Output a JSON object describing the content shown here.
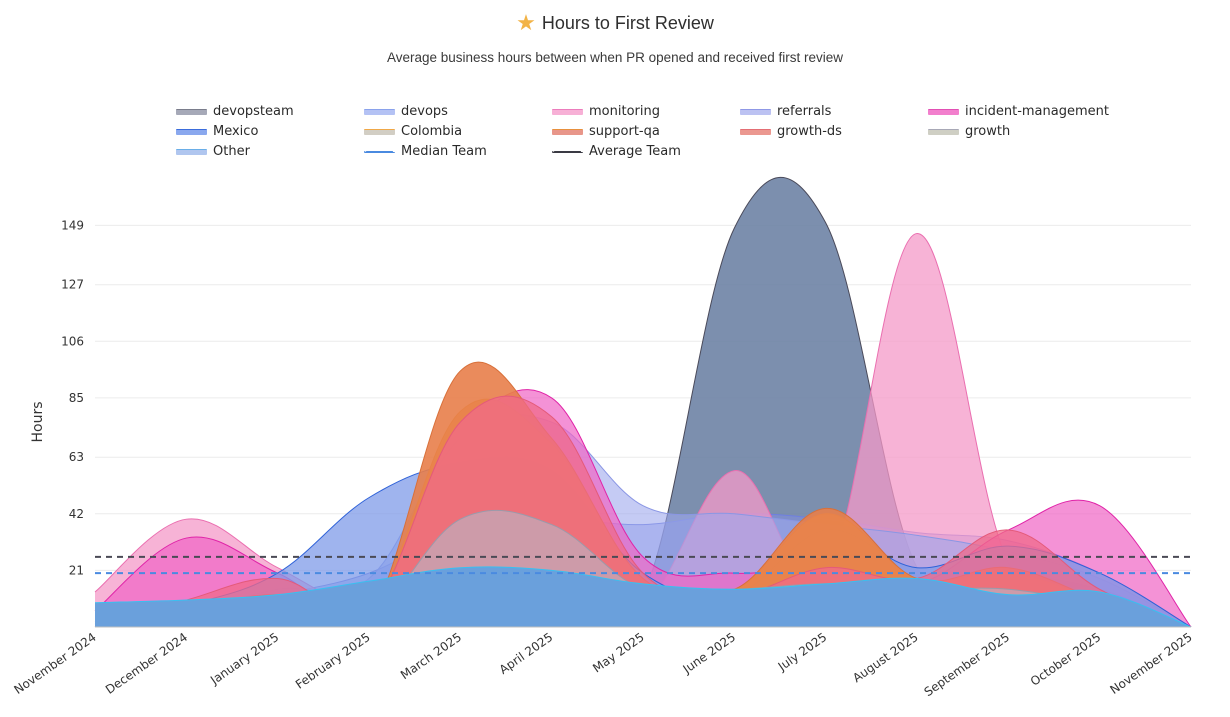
{
  "header": {
    "icon": "star-icon",
    "title": "Hours to First Review",
    "subtitle": "Average business hours between when PR opened and received first review"
  },
  "chart_data": {
    "type": "area",
    "title": "Hours to First Review",
    "subtitle": "Average business hours between when PR opened and received first review",
    "xlabel": "",
    "ylabel": "Hours",
    "ylim": [
      0,
      152
    ],
    "yticks": [
      21,
      42,
      63,
      85,
      106,
      127,
      149
    ],
    "grid": true,
    "legend_position": "top",
    "x": [
      "November 2024",
      "December 2024",
      "January 2025",
      "February 2025",
      "March 2025",
      "April 2025",
      "May 2025",
      "June 2025",
      "July 2025",
      "August 2025",
      "September 2025",
      "October 2025",
      "November 2025"
    ],
    "series": [
      {
        "name": "devopsteam",
        "color": "#6a7fa3",
        "line": "#4a4a5a",
        "opacity": 0.88,
        "values": [
          2,
          6,
          10,
          6,
          8,
          10,
          12,
          148,
          150,
          22,
          20,
          14,
          0
        ]
      },
      {
        "name": "devops",
        "color": "#7f8ee6",
        "line": "#6f7fe0",
        "opacity": 0.5,
        "values": [
          3,
          6,
          12,
          20,
          36,
          40,
          38,
          42,
          40,
          35,
          32,
          20,
          0
        ]
      },
      {
        "name": "monitoring",
        "color": "#f49ac8",
        "line": "#ea6fb0",
        "opacity": 0.75,
        "values": [
          13,
          40,
          22,
          6,
          10,
          14,
          8,
          58,
          20,
          146,
          24,
          14,
          0
        ]
      },
      {
        "name": "referrals",
        "color": "#9fa8ec",
        "line": "#8a96e4",
        "opacity": 0.6,
        "values": [
          4,
          6,
          14,
          18,
          70,
          76,
          45,
          42,
          38,
          34,
          28,
          18,
          0
        ]
      },
      {
        "name": "incident-management",
        "color": "#f064c4",
        "line": "#e024a8",
        "opacity": 0.7,
        "values": [
          6,
          33,
          20,
          4,
          70,
          85,
          26,
          20,
          22,
          16,
          36,
          45,
          0
        ]
      },
      {
        "name": "Mexico",
        "color": "#7f9be8",
        "line": "#2f62d8",
        "opacity": 0.75,
        "values": [
          1,
          8,
          20,
          48,
          61,
          58,
          20,
          12,
          36,
          22,
          30,
          20,
          0
        ]
      },
      {
        "name": "Colombia",
        "color": "#f2b04a",
        "line": "#e8a030",
        "opacity": 0.9,
        "values": [
          0,
          4,
          10,
          5,
          80,
          68,
          18,
          14,
          42,
          18,
          20,
          10,
          0
        ]
      },
      {
        "name": "support-qa",
        "color": "#e87e4a",
        "line": "#d8703a",
        "opacity": 0.9,
        "values": [
          0,
          6,
          12,
          4,
          95,
          70,
          18,
          14,
          44,
          18,
          22,
          10,
          0
        ]
      },
      {
        "name": "growth-ds",
        "color": "#f06a8a",
        "line": "#e45a7a",
        "opacity": 0.75,
        "values": [
          0,
          10,
          18,
          6,
          76,
          78,
          20,
          12,
          22,
          18,
          36,
          14,
          0
        ]
      },
      {
        "name": "growth",
        "color": "#b8b8c8",
        "line": "#9a9aaa",
        "opacity": 0.6,
        "values": [
          0,
          6,
          8,
          4,
          40,
          38,
          14,
          14,
          16,
          14,
          14,
          8,
          0
        ]
      },
      {
        "name": "Other",
        "color": "#6aa0dc",
        "line": "#38c0f0",
        "opacity": 1.0,
        "values": [
          9,
          10,
          12,
          17,
          22,
          21,
          16,
          14,
          16,
          18,
          12,
          13,
          0
        ]
      }
    ],
    "reference_lines": [
      {
        "name": "Median Team",
        "value": 20,
        "color": "#4a8ae0",
        "style": "dashed"
      },
      {
        "name": "Average Team",
        "value": 26,
        "color": "#4a4a55",
        "style": "dashed"
      }
    ]
  },
  "legend": [
    {
      "label": "devopsteam",
      "swatch": "#a6a9b8",
      "edge": "#7a7d8c"
    },
    {
      "label": "devops",
      "swatch": "#b4c2f4",
      "edge": "#8aa2ec"
    },
    {
      "label": "monitoring",
      "swatch": "#f7b0d6",
      "edge": "#ec7cbc"
    },
    {
      "label": "referrals",
      "swatch": "#bcc2f2",
      "edge": "#8f98e6"
    },
    {
      "label": "incident-management",
      "swatch": "#f27fcd",
      "edge": "#e24fb4"
    },
    {
      "label": "Mexico",
      "swatch": "#8aa8ee",
      "edge": "#3b6ddc"
    },
    {
      "label": "Colombia",
      "swatch": "#d2cec4",
      "edge": "#f0a848"
    },
    {
      "label": "support-qa",
      "swatch": "#e8968a",
      "edge": "#e8903e"
    },
    {
      "label": "growth-ds",
      "swatch": "#eb9890",
      "edge": "#e46e74"
    },
    {
      "label": "growth",
      "swatch": "#cfcfc4",
      "edge": "#a8a8b6"
    },
    {
      "label": "Other",
      "swatch": "#b0c6ef",
      "edge": "#6aaee8"
    },
    {
      "label": "Median Team",
      "dash": "#4a8ae0"
    },
    {
      "label": "Average Team",
      "dash": "#3a3a44"
    }
  ]
}
